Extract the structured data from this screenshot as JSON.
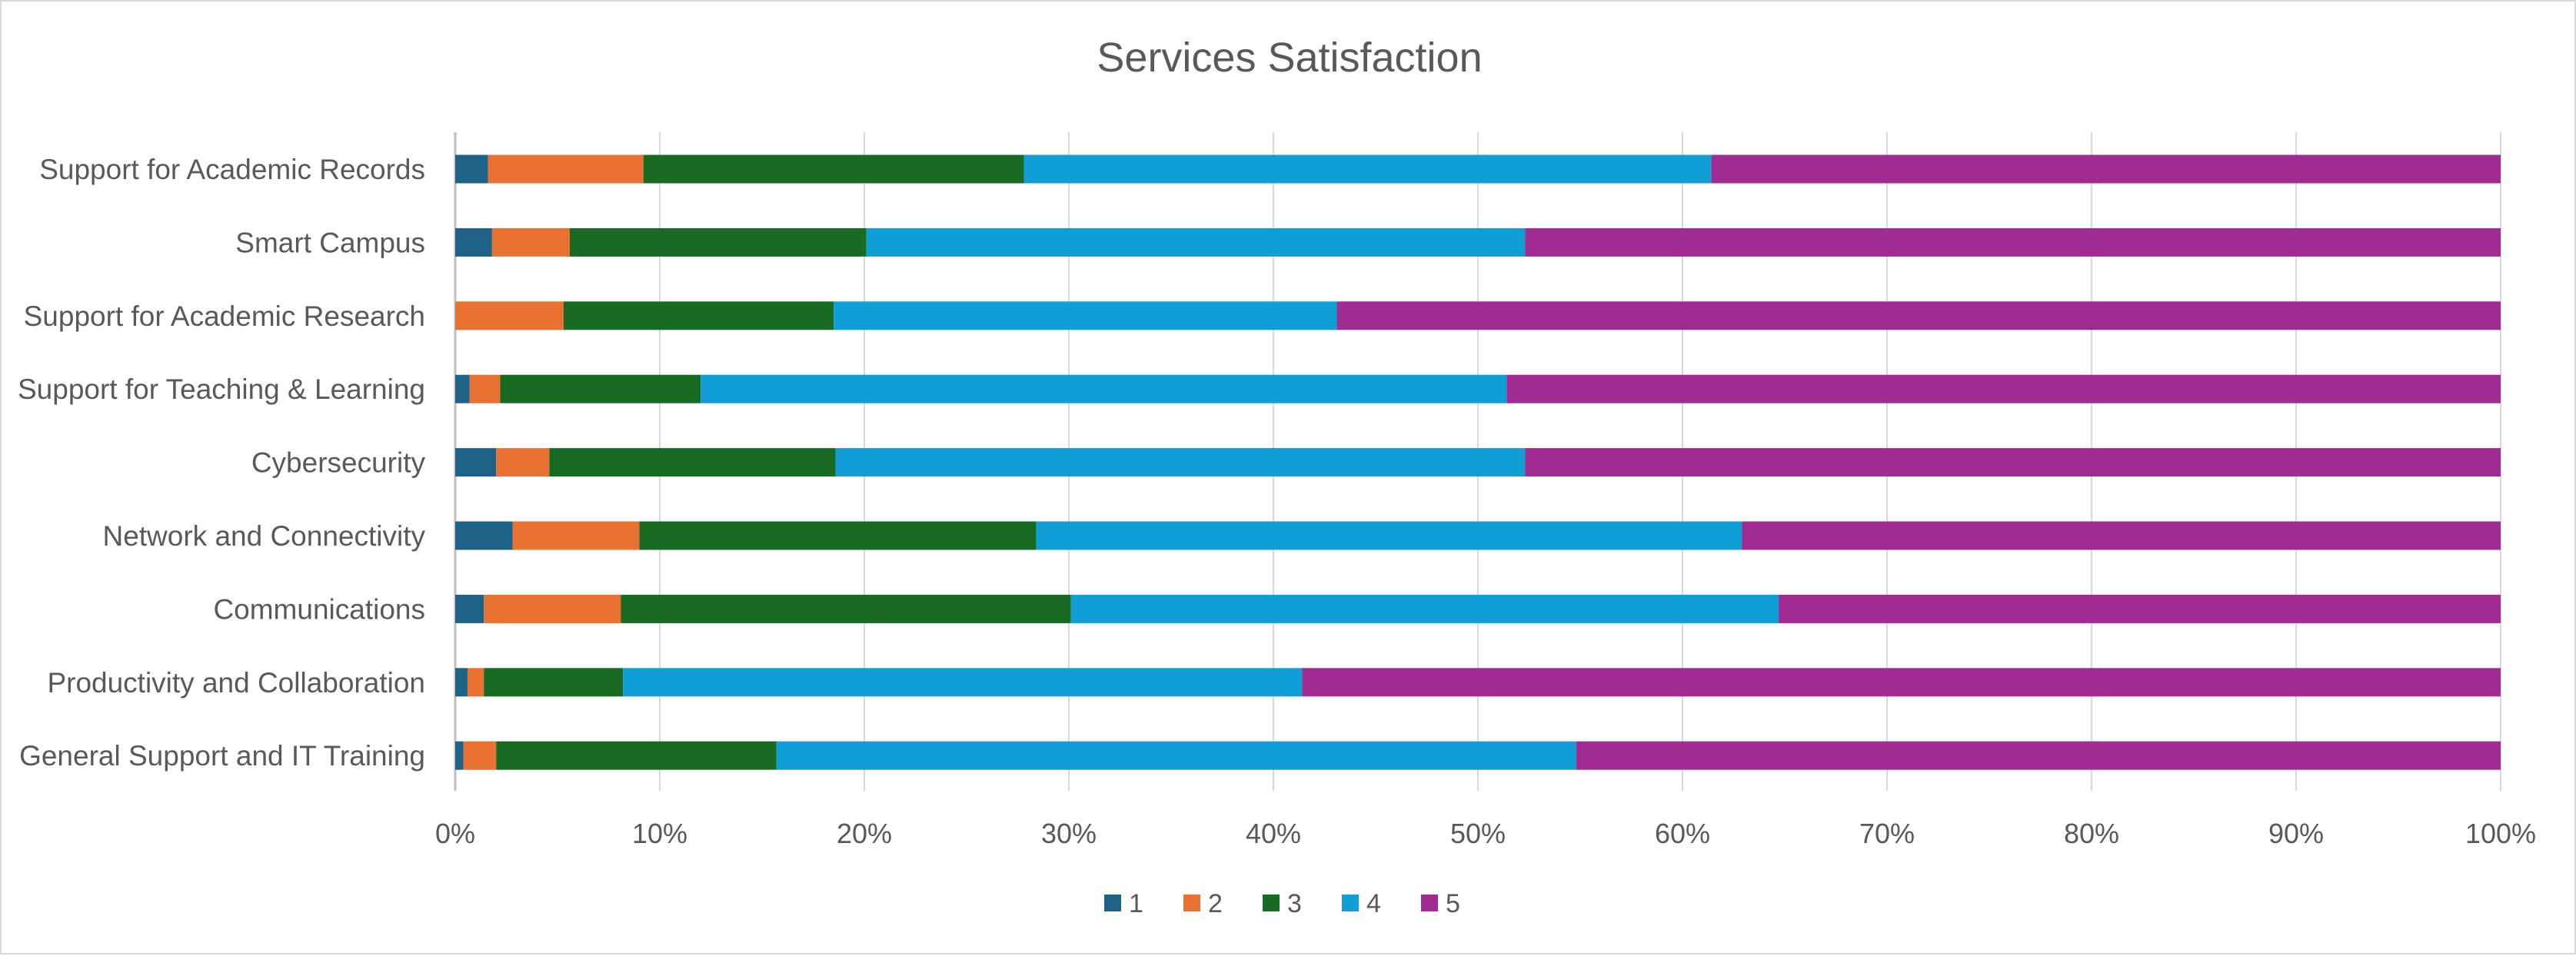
{
  "chart_data": {
    "type": "bar",
    "orientation": "horizontal",
    "stacked": "percent",
    "title": "Services Satisfaction",
    "categories": [
      "Support for Academic Records",
      "Smart Campus",
      "Support for Academic Research",
      "Support for Teaching & Learning",
      "Cybersecurity",
      "Network and Connectivity",
      "Communications",
      "Productivity and Collaboration",
      "General Support and IT Training"
    ],
    "series": [
      {
        "name": "1",
        "color": "#1f6287",
        "values": [
          1.6,
          1.8,
          0.0,
          0.7,
          2.0,
          2.8,
          1.4,
          0.6,
          0.4
        ]
      },
      {
        "name": "2",
        "color": "#e97132",
        "values": [
          7.6,
          3.8,
          5.3,
          1.5,
          2.6,
          6.2,
          6.7,
          0.8,
          1.6
        ]
      },
      {
        "name": "3",
        "color": "#196b24",
        "values": [
          18.6,
          14.5,
          13.2,
          9.8,
          14.0,
          19.4,
          22.0,
          6.8,
          13.7
        ]
      },
      {
        "name": "4",
        "color": "#0f9ed5",
        "values": [
          33.6,
          32.2,
          24.6,
          39.4,
          33.7,
          34.5,
          34.6,
          33.2,
          39.1
        ]
      },
      {
        "name": "5",
        "color": "#a02b93",
        "values": [
          38.6,
          47.7,
          56.9,
          48.6,
          47.7,
          37.1,
          35.3,
          58.6,
          45.2
        ]
      }
    ],
    "x_axis": {
      "range": [
        0,
        100
      ],
      "tick_labels": [
        "0%",
        "10%",
        "20%",
        "30%",
        "40%",
        "50%",
        "60%",
        "70%",
        "80%",
        "90%",
        "100%"
      ]
    },
    "grid": true,
    "legend": {
      "position": "bottom"
    }
  }
}
